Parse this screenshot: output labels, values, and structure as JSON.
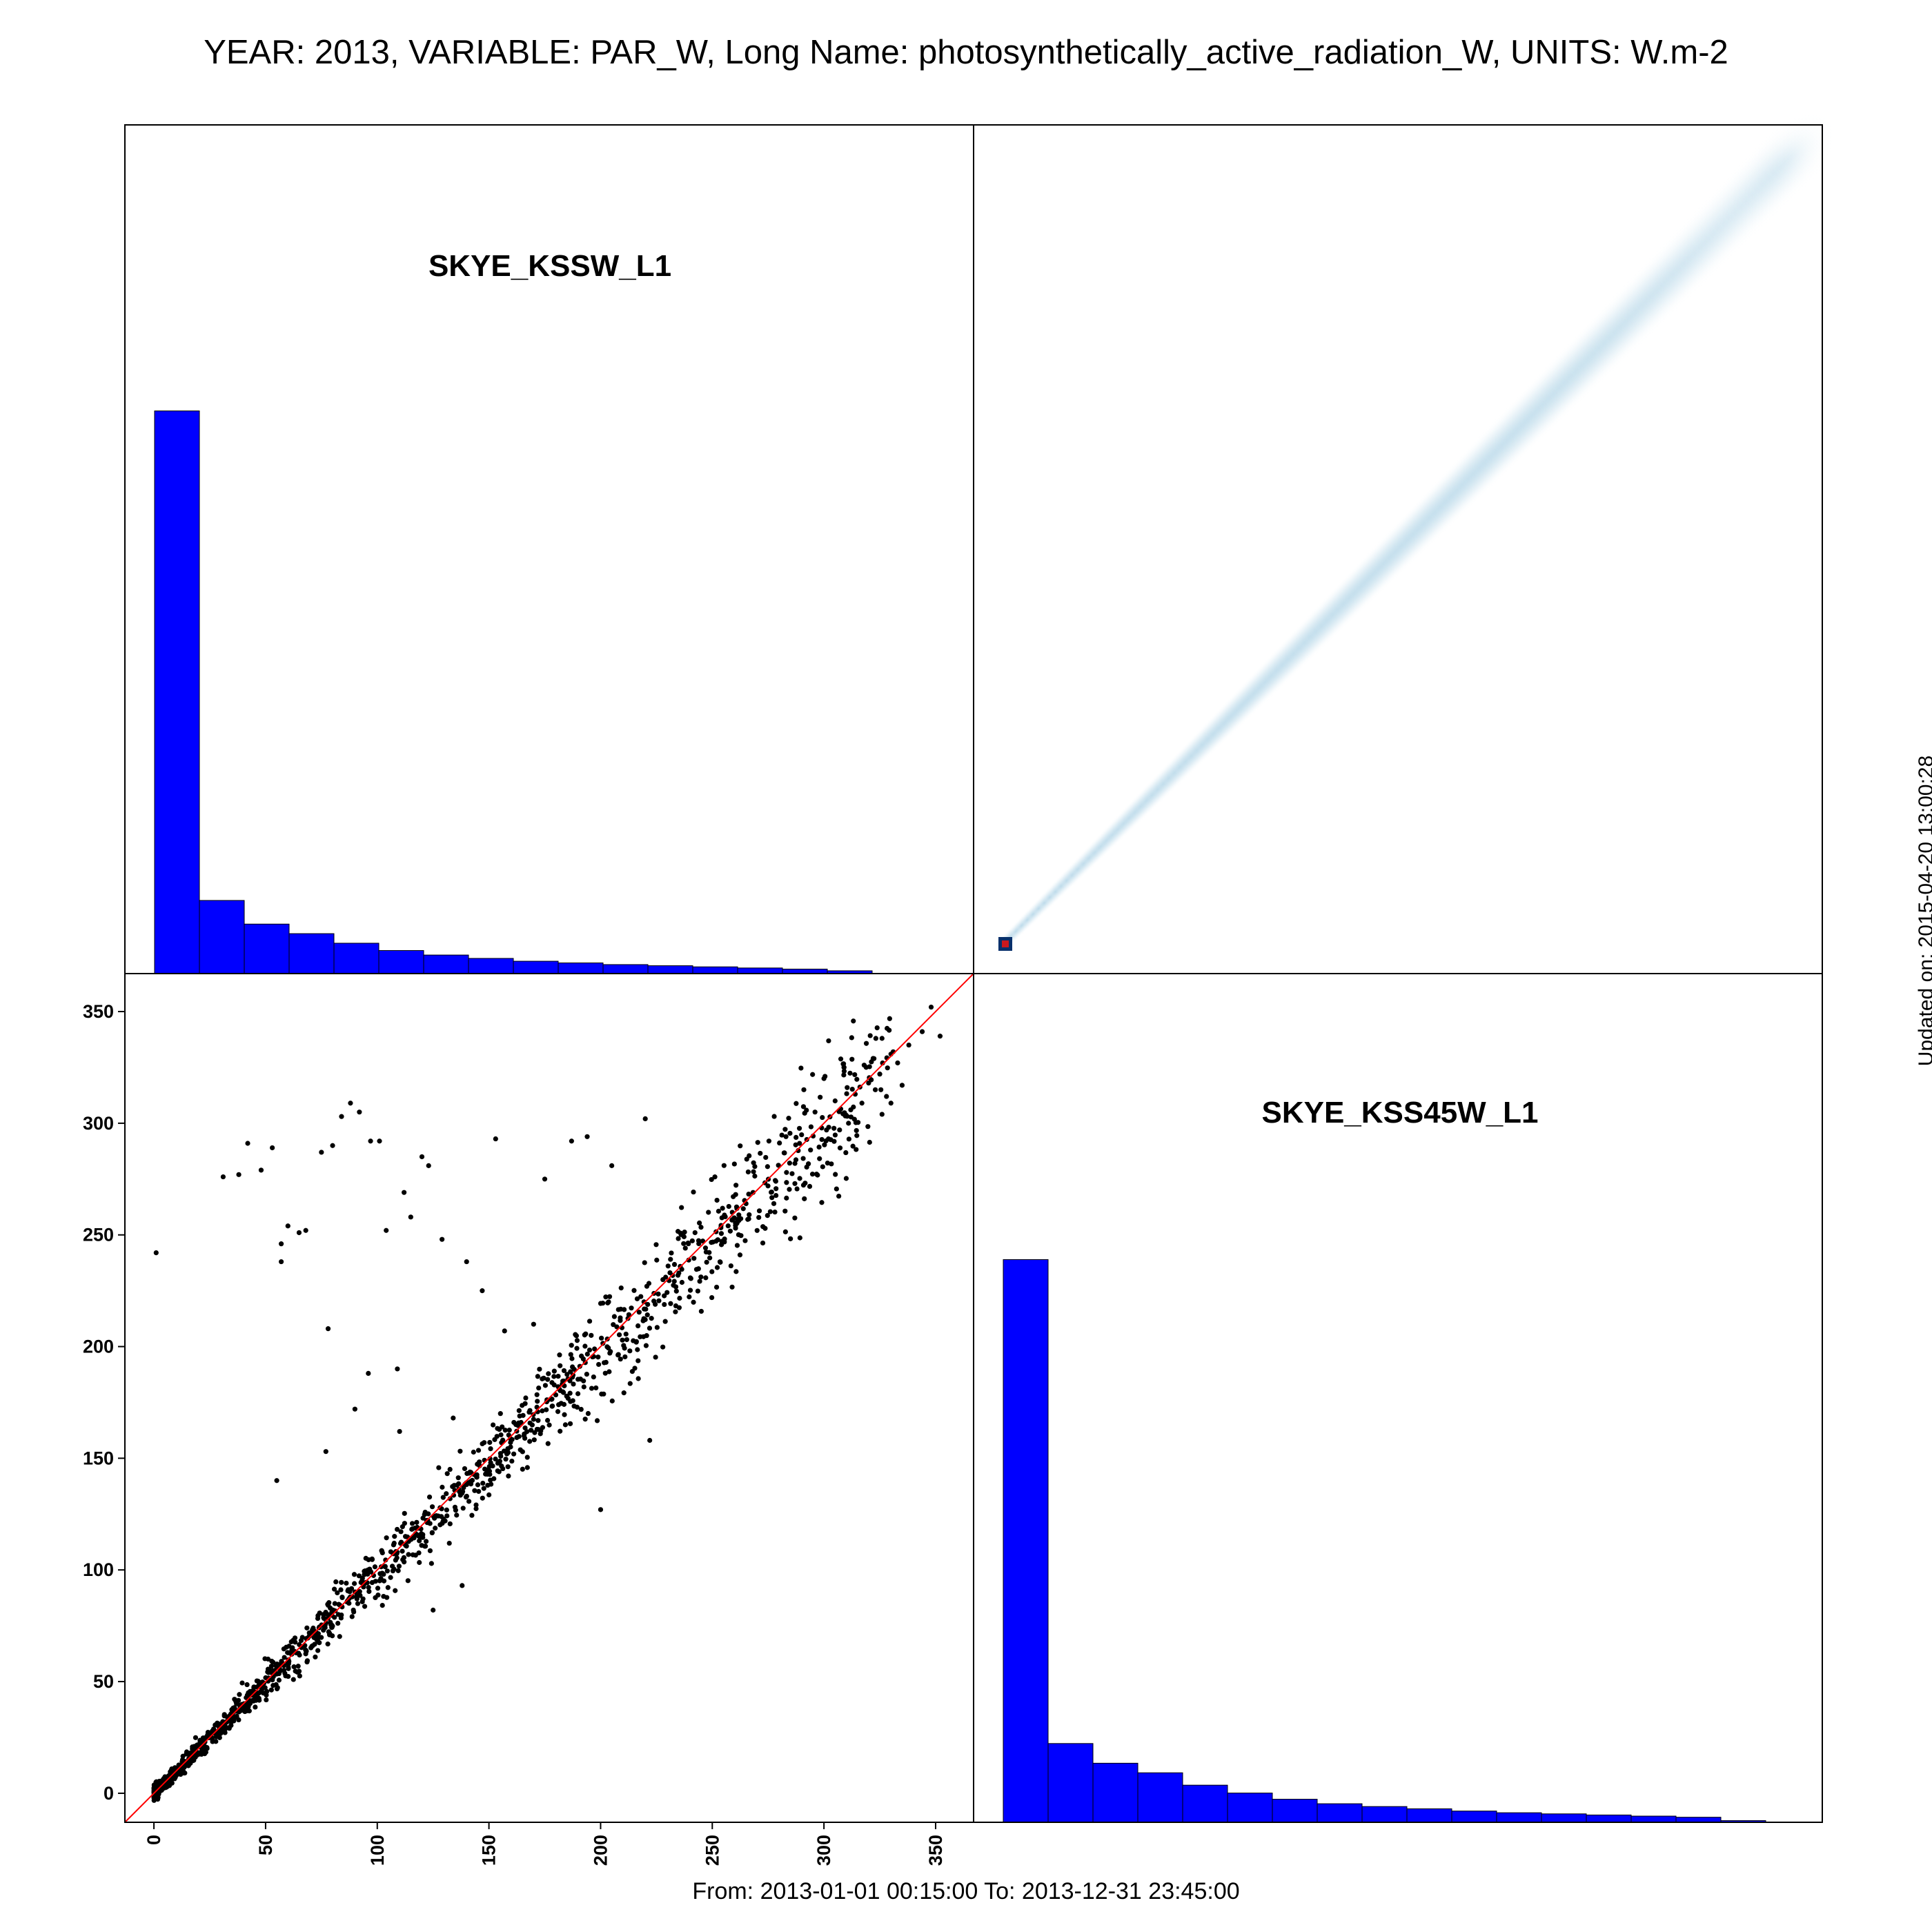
{
  "title": "YEAR: 2013, VARIABLE: PAR_W, Long Name: photosynthetically_active_radiation_W, UNITS: W.m-2",
  "footer": "From: 2013-01-01 00:15:00 To: 2013-12-31 23:45:00",
  "updated": "Updated on: 2015-04-20 13:00:28",
  "colors": {
    "histogram": "#0000ff",
    "points": "#000000",
    "identity_line": "#ff0000",
    "density": "#6baed6"
  },
  "chart_data": [
    {
      "type": "histogram",
      "panel": "top-left",
      "label": "SKYE_KSSW_L1",
      "bin_edges": [
        0,
        20,
        40,
        60,
        80,
        100,
        120,
        140,
        160,
        180,
        200,
        220,
        240,
        260,
        280,
        300,
        320
      ],
      "relative_counts": [
        1.0,
        0.13,
        0.088,
        0.071,
        0.054,
        0.041,
        0.033,
        0.027,
        0.022,
        0.019,
        0.016,
        0.014,
        0.012,
        0.01,
        0.008,
        0.005
      ]
    },
    {
      "type": "heatmap",
      "panel": "top-right",
      "description_of_axes": "x: SKYE_KSSW_L1, y: SKYE_KSS45W_L1",
      "peak_bin": [
        0,
        0
      ]
    },
    {
      "type": "scatter",
      "panel": "bottom-left",
      "x_variable": "SKYE_KSSW_L1",
      "y_variable": "SKYE_KSS45W_L1",
      "xlim": [
        -13,
        367
      ],
      "ylim": [
        -13,
        367
      ],
      "x_ticks": [
        0,
        50,
        100,
        150,
        200,
        250,
        300,
        350
      ],
      "y_ticks": [
        0,
        50,
        100,
        150,
        200,
        250,
        300,
        350
      ],
      "identity_line": true,
      "outliers": [
        [
          1,
          242
        ],
        [
          31,
          276
        ],
        [
          38,
          277
        ],
        [
          42,
          291
        ],
        [
          48,
          279
        ],
        [
          53,
          289
        ],
        [
          57,
          246
        ],
        [
          57,
          238
        ],
        [
          60,
          254
        ],
        [
          65,
          251
        ],
        [
          68,
          252
        ],
        [
          75,
          287
        ],
        [
          78,
          208
        ],
        [
          80,
          290
        ],
        [
          84,
          303
        ],
        [
          88,
          309
        ],
        [
          92,
          305
        ],
        [
          97,
          292
        ],
        [
          101,
          292
        ],
        [
          104,
          252
        ],
        [
          112,
          269
        ],
        [
          115,
          258
        ],
        [
          120,
          285
        ],
        [
          123,
          281
        ],
        [
          129,
          248
        ],
        [
          140,
          238
        ],
        [
          147,
          225
        ],
        [
          153,
          293
        ],
        [
          175,
          275
        ],
        [
          187,
          292
        ],
        [
          194,
          294
        ],
        [
          205,
          281
        ],
        [
          220,
          302
        ],
        [
          96,
          188
        ],
        [
          109,
          190
        ],
        [
          134,
          168
        ],
        [
          157,
          207
        ],
        [
          170,
          210
        ],
        [
          222,
          158
        ],
        [
          200,
          127
        ],
        [
          55,
          140
        ],
        [
          77,
          153
        ],
        [
          125,
          82
        ],
        [
          138,
          93
        ],
        [
          90,
          172
        ],
        [
          110,
          162
        ]
      ],
      "upper_points": [
        [
          291,
          315
        ],
        [
          296,
          305
        ],
        [
          300,
          320
        ],
        [
          305,
          310
        ],
        [
          309,
          325
        ],
        [
          311,
          300
        ],
        [
          314,
          313
        ],
        [
          318,
          326
        ],
        [
          320,
          318
        ],
        [
          322,
          329
        ],
        [
          325,
          322
        ],
        [
          326,
          338
        ],
        [
          328,
          312
        ],
        [
          331,
          332
        ],
        [
          333,
          327
        ],
        [
          335,
          317
        ],
        [
          338,
          335
        ],
        [
          344,
          341
        ],
        [
          348,
          352
        ],
        [
          352,
          339
        ],
        [
          330,
          309
        ],
        [
          317,
          309
        ],
        [
          307,
          297
        ],
        [
          302,
          293
        ],
        [
          294,
          288
        ],
        [
          287,
          282
        ],
        [
          283,
          294
        ],
        [
          312,
          306
        ],
        [
          323,
          315
        ],
        [
          326,
          304
        ]
      ]
    },
    {
      "type": "histogram",
      "panel": "bottom-right",
      "label": "SKYE_KSS45W_L1",
      "bin_edges": [
        0,
        20,
        40,
        60,
        80,
        100,
        120,
        140,
        160,
        180,
        200,
        220,
        240,
        260,
        280,
        300,
        320,
        340
      ],
      "relative_counts": [
        1.0,
        0.14,
        0.105,
        0.088,
        0.066,
        0.052,
        0.041,
        0.033,
        0.028,
        0.024,
        0.02,
        0.017,
        0.015,
        0.013,
        0.011,
        0.009,
        0.003
      ]
    }
  ]
}
